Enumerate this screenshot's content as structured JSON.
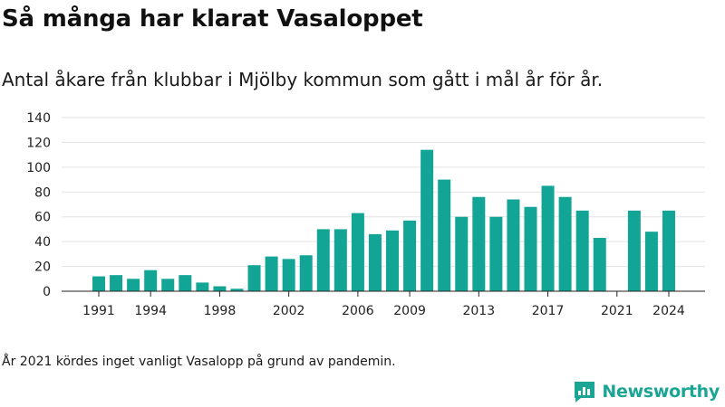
{
  "title": "Så många har klarat Vasaloppet",
  "subtitle": "Antal åkare från klubbar i Mjölby kommun som gått i mål år för år.",
  "footnote": "År 2021 kördes inget vanligt Vasalopp på grund av pandemin.",
  "brand": {
    "name": "Newsworthy",
    "logo_icon": "newsworthy-logo-icon",
    "color": "#1aa595"
  },
  "chart_data": {
    "type": "bar",
    "title": "Så många har klarat Vasaloppet",
    "subtitle": "Antal åkare från klubbar i Mjölby kommun som gått i mål år för år.",
    "xlabel": "",
    "ylabel": "",
    "bar_color": "#12a596",
    "grid": true,
    "ylim": [
      0,
      140
    ],
    "yticks": [
      0,
      20,
      40,
      60,
      80,
      100,
      120,
      140
    ],
    "xticks": [
      "1991",
      "1994",
      "1998",
      "2002",
      "2006",
      "2009",
      "2013",
      "2017",
      "2021",
      "2024"
    ],
    "categories": [
      "1991",
      "1992",
      "1993",
      "1994",
      "1995",
      "1996",
      "1997",
      "1998",
      "1999",
      "2000",
      "2001",
      "2002",
      "2003",
      "2004",
      "2005",
      "2006",
      "2007",
      "2008",
      "2009",
      "2010",
      "2011",
      "2012",
      "2013",
      "2014",
      "2015",
      "2016",
      "2017",
      "2018",
      "2019",
      "2020",
      "2021",
      "2022",
      "2023",
      "2024"
    ],
    "values": [
      12,
      13,
      10,
      17,
      10,
      13,
      7,
      4,
      2,
      21,
      28,
      26,
      29,
      50,
      50,
      63,
      46,
      49,
      57,
      114,
      90,
      60,
      76,
      60,
      74,
      68,
      85,
      76,
      65,
      43,
      0,
      65,
      48,
      65
    ]
  }
}
